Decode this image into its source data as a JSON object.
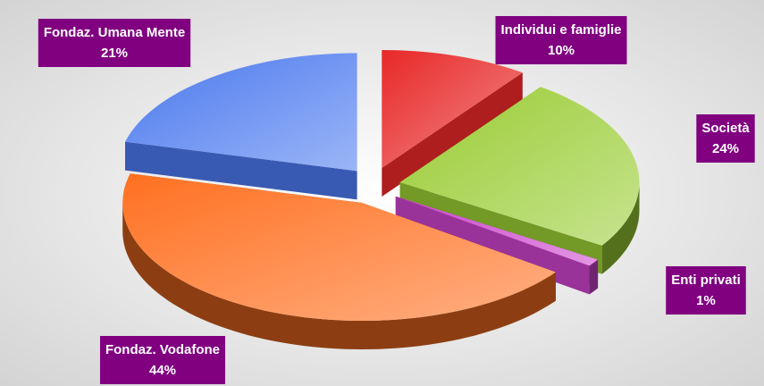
{
  "chart_data": {
    "type": "pie",
    "categories": [
      "Individui e famiglie",
      "Società",
      "Enti privati",
      "Fondaz. Vodafone",
      "Fondaz. Umana Mente"
    ],
    "values": [
      10,
      24,
      1,
      44,
      21
    ],
    "value_labels": [
      "10%",
      "24%",
      "1%",
      "44%",
      "21%"
    ],
    "colors": [
      "#e82828",
      "#99cc33",
      "#cc44cc",
      "#ff7020",
      "#4a78ee"
    ]
  }
}
